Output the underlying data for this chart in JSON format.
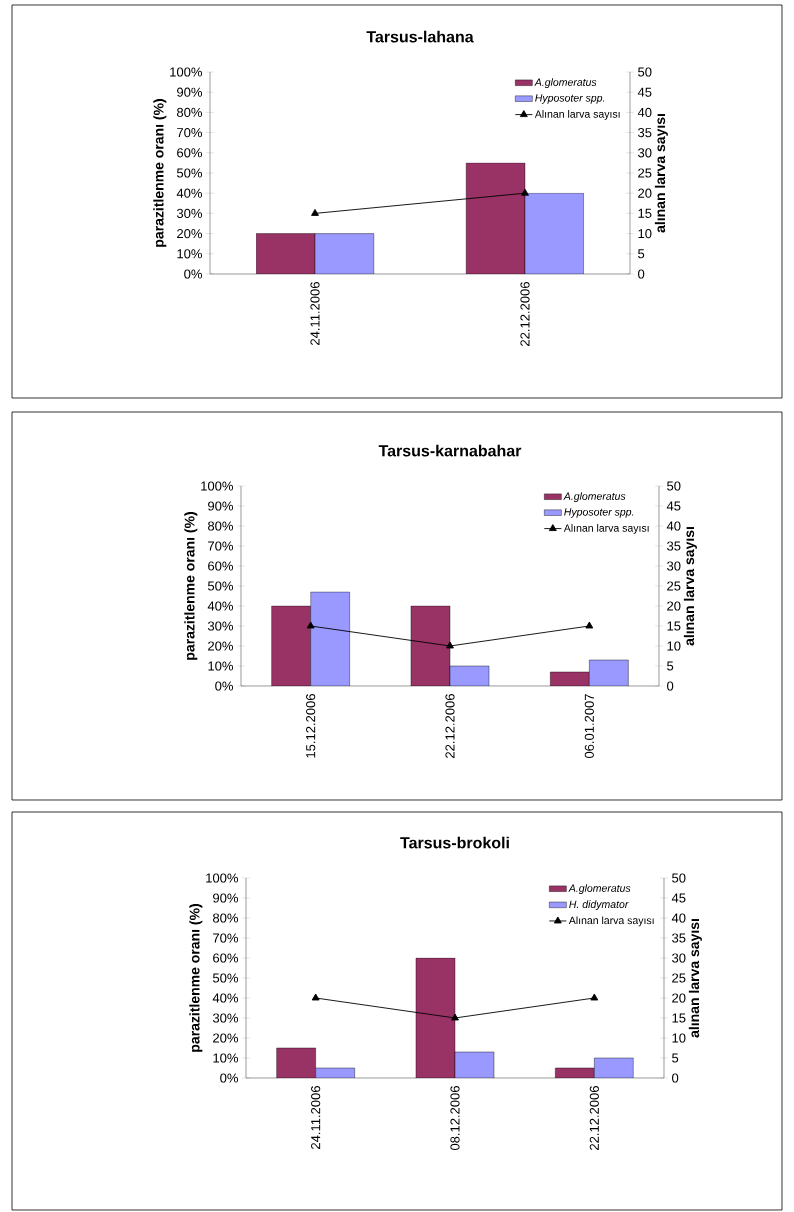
{
  "chart_data": [
    {
      "type": "bar",
      "title": "Tarsus-lahana",
      "ylabel": "parazitlenme oranı (%)",
      "y2label": "alınan larva sayısı",
      "categories": [
        "24.11.2006",
        "22.12.2006"
      ],
      "series": [
        {
          "name": "A.glomeratus",
          "color": "#993366",
          "values": [
            20,
            55
          ]
        },
        {
          "name": "Hyposoter spp.",
          "color": "#9999ff",
          "values": [
            20,
            40
          ]
        },
        {
          "name": "Alınan larva sayısı",
          "type": "line",
          "axis": "y2",
          "marker": "triangle",
          "color": "#000000",
          "values": [
            15,
            20
          ]
        }
      ],
      "ylim": [
        0,
        100
      ],
      "yticks": [
        {
          "value": 0,
          "label": "0%"
        },
        {
          "value": 10,
          "label": "10%"
        },
        {
          "value": 20,
          "label": "20%"
        },
        {
          "value": 30,
          "label": "30%"
        },
        {
          "value": 40,
          "label": "40%"
        },
        {
          "value": 50,
          "label": "50%"
        },
        {
          "value": 60,
          "label": "60%"
        },
        {
          "value": 70,
          "label": "70%"
        },
        {
          "value": 80,
          "label": "80%"
        },
        {
          "value": 90,
          "label": "90%"
        },
        {
          "value": 100,
          "label": "100%"
        }
      ],
      "y2lim": [
        0,
        50
      ],
      "y2ticks": [
        0,
        5,
        10,
        15,
        20,
        25,
        30,
        35,
        40,
        45,
        50
      ],
      "legend": "top right"
    },
    {
      "type": "bar",
      "title": "Tarsus-karnabahar",
      "ylabel": "parazitlenme oranı (%)",
      "y2label": "alınan larva sayısı",
      "categories": [
        "15.12.2006",
        "22.12.2006",
        "06.01.2007"
      ],
      "series": [
        {
          "name": "A.glomeratus",
          "color": "#993366",
          "values": [
            40,
            40,
            7
          ]
        },
        {
          "name": "Hyposoter spp.",
          "color": "#9999ff",
          "values": [
            47,
            10,
            13
          ]
        },
        {
          "name": "Alınan larva sayısı",
          "type": "line",
          "axis": "y2",
          "marker": "triangle",
          "color": "#000000",
          "values": [
            15,
            10,
            15
          ]
        }
      ],
      "ylim": [
        0,
        100
      ],
      "yticks": [
        {
          "value": 0,
          "label": "0%"
        },
        {
          "value": 10,
          "label": "10%"
        },
        {
          "value": 20,
          "label": "20%"
        },
        {
          "value": 30,
          "label": "30%"
        },
        {
          "value": 40,
          "label": "40%"
        },
        {
          "value": 50,
          "label": "50%"
        },
        {
          "value": 60,
          "label": "60%"
        },
        {
          "value": 70,
          "label": "70%"
        },
        {
          "value": 80,
          "label": "80%"
        },
        {
          "value": 90,
          "label": "90%"
        },
        {
          "value": 100,
          "label": "100%"
        }
      ],
      "y2lim": [
        0,
        50
      ],
      "y2ticks": [
        0,
        5,
        10,
        15,
        20,
        25,
        30,
        35,
        40,
        45,
        50
      ],
      "legend": "top right"
    },
    {
      "type": "bar",
      "title": "Tarsus-brokoli",
      "ylabel": "parazitlenme oranı (%)",
      "y2label": "alınan larva sayısı",
      "categories": [
        "24.11.2006",
        "08.12.2006",
        "22.12.2006"
      ],
      "series": [
        {
          "name": "A.glomeratus",
          "color": "#993366",
          "values": [
            15,
            60,
            5
          ]
        },
        {
          "name": "H. didymator",
          "color": "#9999ff",
          "values": [
            5,
            13,
            10
          ]
        },
        {
          "name": "Alınan larva sayısı",
          "type": "line",
          "axis": "y2",
          "marker": "triangle",
          "color": "#000000",
          "values": [
            20,
            15,
            20
          ]
        }
      ],
      "ylim": [
        0,
        100
      ],
      "yticks": [
        {
          "value": 0,
          "label": "0%"
        },
        {
          "value": 10,
          "label": "10%"
        },
        {
          "value": 20,
          "label": "20%"
        },
        {
          "value": 30,
          "label": "30%"
        },
        {
          "value": 40,
          "label": "40%"
        },
        {
          "value": 50,
          "label": "50%"
        },
        {
          "value": 60,
          "label": "60%"
        },
        {
          "value": 70,
          "label": "70%"
        },
        {
          "value": 80,
          "label": "80%"
        },
        {
          "value": 90,
          "label": "90%"
        },
        {
          "value": 100,
          "label": "100%"
        }
      ],
      "y2lim": [
        0,
        50
      ],
      "y2ticks": [
        0,
        5,
        10,
        15,
        20,
        25,
        30,
        35,
        40,
        45,
        50
      ],
      "legend": "top right"
    }
  ]
}
